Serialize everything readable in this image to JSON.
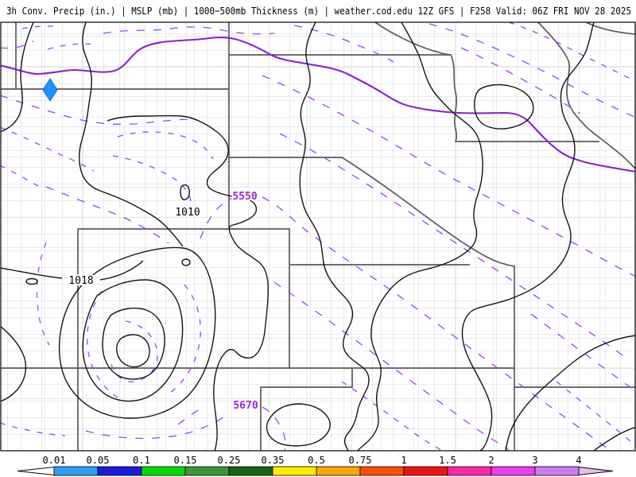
{
  "header": {
    "title": "3h Conv. Precip (in.) | MSLP (mb) | 1000−500mb Thickness (m) | weather.cod.edu 12Z GFS | F258 Valid: 06Z FRI NOV 28 2025"
  },
  "map": {
    "labels": {
      "thickness_a": "5550",
      "thickness_b": "5670",
      "mslp_low": "1010",
      "mslp_high": "1018"
    },
    "marker": {
      "meaning": "convective-precip-area",
      "color": "#1e90ff",
      "edge_color": "#0f6fd0"
    },
    "colors": {
      "mslp_contour": "#141414",
      "thickness_contour": "#a142e6",
      "thickness_solid_contour": "#8a1fd4",
      "state_border": "#5a5a5a",
      "county_border": "#c9c9c9"
    }
  },
  "colorbar": {
    "units": "in.",
    "tick_labels": [
      "0.01",
      "0.05",
      "0.1",
      "0.15",
      "0.25",
      "0.35",
      "0.5",
      "0.75",
      "1",
      "1.5",
      "2",
      "3",
      "4"
    ],
    "segment_colors": [
      "#2b9ef4",
      "#1a1ae0",
      "#00dc00",
      "#3c9636",
      "#166416",
      "#ffec00",
      "#ffa400",
      "#ff5000",
      "#ee1414",
      "#ff28a0",
      "#ee3cee",
      "#cc7de8"
    ],
    "left_arrow_color": "#ffffff",
    "right_arrow_color": "#e0bff0"
  }
}
